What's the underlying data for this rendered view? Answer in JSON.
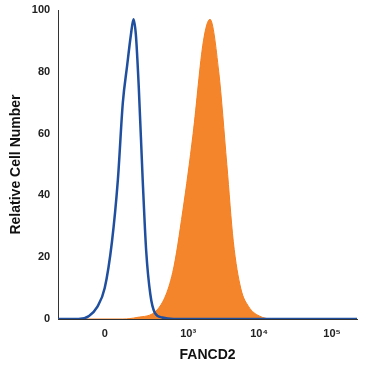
{
  "chart_data": {
    "type": "line",
    "x_label": "FANCD2",
    "y_label": "Relative Cell Number",
    "log": "x",
    "grid": false,
    "xlim": [
      -260,
      220000
    ],
    "xticks": [
      0,
      {
        "value": 1000,
        "label": "10³"
      },
      {
        "value": 10000,
        "label": "10⁴"
      },
      {
        "value": 100000,
        "label": "10⁵"
      }
    ],
    "ylim": [
      0,
      100
    ],
    "yticks": [
      0,
      20,
      40,
      60,
      80,
      100
    ],
    "series": [
      {
        "type": "line",
        "color": "#1f4f9e",
        "x": [
          -260,
          -100,
          -50,
          -20,
          0,
          20,
          40,
          60,
          80,
          100,
          115,
          130,
          150,
          180,
          210,
          250,
          300,
          400,
          600,
          220000
        ],
        "values": [
          0,
          0,
          1,
          4,
          10,
          25,
          45,
          70,
          82,
          92,
          97,
          92,
          75,
          45,
          22,
          8,
          2,
          0.5,
          0,
          0
        ]
      },
      {
        "type": "area",
        "color": "#f47e20",
        "x": [
          -260,
          60,
          137,
          330,
          585,
          835,
          1185,
          1670,
          2070,
          2750,
          3570,
          4400,
          5570,
          7180,
          10000,
          16000,
          220000
        ],
        "values": [
          0,
          0,
          0.5,
          3,
          15,
          35,
          60,
          90,
          97,
          80,
          50,
          25,
          10,
          4,
          1,
          0,
          0
        ]
      }
    ]
  }
}
